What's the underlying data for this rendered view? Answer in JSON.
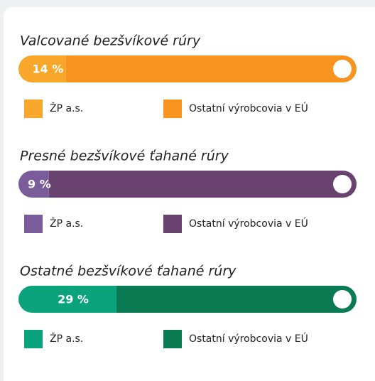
{
  "chart_data": [
    {
      "type": "bar",
      "stacked": true,
      "title": "Valcované bezšvíkové rúry",
      "series": [
        {
          "name": "ŽP a.s.",
          "color": "#f9a72b",
          "values": [
            14
          ],
          "value_labels": [
            "14 %"
          ]
        },
        {
          "name": "Ostatní výrobcovia v EÚ",
          "color": "#f7931e",
          "values": [
            86
          ]
        }
      ],
      "xlim": [
        0,
        100
      ]
    },
    {
      "type": "bar",
      "stacked": true,
      "title": "Presné bezšvíkové ťahané rúry",
      "series": [
        {
          "name": "ŽP a.s.",
          "color": "#7b5c9b",
          "values": [
            9
          ],
          "value_labels": [
            "9 %"
          ]
        },
        {
          "name": "Ostatní výrobcovia v EÚ",
          "color": "#6a426f",
          "values": [
            91
          ]
        }
      ],
      "xlim": [
        0,
        100
      ]
    },
    {
      "type": "bar",
      "stacked": true,
      "title": "Ostatné bezšvíkové ťahané rúry",
      "series": [
        {
          "name": "ŽP a.s.",
          "color": "#0ba37c",
          "values": [
            29
          ],
          "value_labels": [
            "29 %"
          ]
        },
        {
          "name": "Ostatní výrobcovia v EÚ",
          "color": "#0a7a53",
          "values": [
            71
          ]
        }
      ],
      "xlim": [
        0,
        100
      ]
    }
  ]
}
